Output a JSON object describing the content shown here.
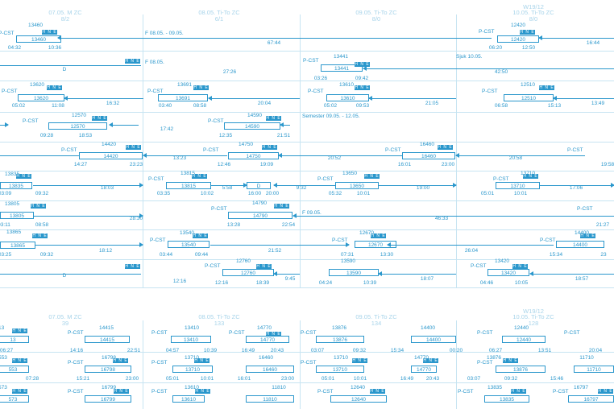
{
  "headers_top": [
    {
      "date": "07.05. M ZC",
      "sub": "8/2"
    },
    {
      "date": "08.05. Ti-To ZC",
      "sub": "6/1"
    },
    {
      "date": "09.05. Ti-To ZC",
      "sub": "8/0"
    },
    {
      "date": "W19/12",
      "date2": "10.05. Ti-To ZC",
      "sub": "8/0"
    }
  ],
  "headers_bottom": [
    {
      "date": "07.05. M ZC",
      "sub": "39"
    },
    {
      "date": "08.05. Ti-To ZC",
      "sub": "133"
    },
    {
      "date": "09.05. Ti-To ZC",
      "sub": "134"
    },
    {
      "date": "W19/12",
      "date2": "10.05. Ti-To ZC",
      "sub": "128"
    }
  ],
  "badge": "H N E",
  "top_rows": [
    {
      "texts": [
        "P-CST",
        "13460",
        "13460",
        "04:32",
        "10:36",
        "F 08.05. - 09.05.",
        "67:44",
        "P-CST",
        "12420",
        "12420",
        "06:20",
        "12:50",
        "16:44"
      ]
    },
    {
      "texts": [
        "D",
        "F 08.05.",
        "27:26",
        "P-CST",
        "13441",
        "13441",
        "03:26",
        "09:42",
        "Sjuk 10.05.",
        "42:50"
      ]
    },
    {
      "texts": [
        "P-CST",
        "13620",
        "13620",
        "05:02",
        "11:08",
        "16:32",
        "P-CST",
        "13691",
        "13691",
        "03:40",
        "08:58",
        "20:04",
        "P-CST",
        "13610",
        "13610",
        "05:02",
        "09:53",
        "21:05",
        "P-CST",
        "12510",
        "12510",
        "06:58",
        "15:13",
        "13:49"
      ]
    },
    {
      "texts": [
        "P-CST",
        "12570",
        "12570",
        "09:28",
        "18:53",
        "17:42",
        "P-CST",
        "14590",
        "14590",
        "12:35",
        "21:51",
        "Semester 09.05. - 12.05."
      ]
    },
    {
      "texts": [
        "P-CST",
        "14420",
        "14420",
        "14:27",
        "23:23",
        "13:23",
        "P-CST",
        "14750",
        "14750",
        "12:46",
        "19:09",
        "20:52",
        "P-CST",
        "16460",
        "16460",
        "16:01",
        "23:00",
        "20:58",
        "P-CST",
        "19:58"
      ]
    },
    {
      "texts": [
        "13835",
        "13835",
        "03:09",
        "09:32",
        "18:03",
        "P-CST",
        "13815",
        "13815",
        "03:35",
        "10:02",
        "5:58",
        "D",
        "16:00",
        "20:00",
        "9:32",
        "P-CST",
        "13650",
        "13650",
        "05:32",
        "10:01",
        "19:00",
        "P-CST",
        "13710",
        "13710",
        "05:01",
        "10:01",
        "17:06"
      ]
    },
    {
      "texts": [
        "13805",
        "13805",
        "03:11",
        "08:58",
        "28:30",
        "P-CST",
        "14790",
        "14790",
        "13:28",
        "22:54",
        "F 09.05.",
        "46:33",
        "P-CST",
        "21:27"
      ]
    },
    {
      "texts": [
        "13865",
        "13865",
        "03:25",
        "09:32",
        "18:12",
        "P-CST",
        "13540",
        "13540",
        "03:44",
        "09:44",
        "21:52",
        "P-CST",
        "12670",
        "12670",
        "07:31",
        "13:30",
        "26:04",
        "P-CST",
        "14400",
        "14400",
        "15:34",
        "23"
      ]
    },
    {
      "texts": [
        "D",
        "12:16",
        "P-CST",
        "12760",
        "12760",
        "12:16",
        "18:39",
        "9:45",
        "13590",
        "13590",
        "04:24",
        "10:39",
        "18:07",
        "P-CST",
        "13420",
        "13420",
        "04:46",
        "10:05",
        "18:57"
      ]
    }
  ],
  "bottom_rows": [
    {
      "texts": [
        "13",
        "13",
        "06:27",
        "P-CST",
        "14415",
        "14415",
        "14:16",
        "22:51",
        "P-CST",
        "13410",
        "13410",
        "04:57",
        "10:39",
        "P-CST",
        "14770",
        "14770",
        "16:49",
        "20:43",
        "P-CST",
        "13876",
        "13876",
        "03:07",
        "09:32",
        "14400",
        "14400",
        "15:34",
        "00:20",
        "P-CST",
        "12440",
        "12440",
        "06:27",
        "13:51",
        "P-CST",
        "20:04"
      ]
    },
    {
      "texts": [
        "553",
        "553",
        "07:28",
        "P-CST",
        "16798",
        "16798",
        "15:21",
        "23:00",
        "P-CST",
        "13710",
        "13710",
        "05:01",
        "10:01",
        "16460",
        "16460",
        "16:01",
        "23:00",
        "P-CST",
        "13710",
        "13710",
        "05:01",
        "10:01",
        "14770",
        "14770",
        "16:49",
        "20:43",
        "P-CST",
        "13876",
        "13876",
        "03:07",
        "09:32",
        "11710",
        "11710",
        "15:46"
      ]
    },
    {
      "texts": [
        "573",
        "573",
        "P-CST",
        "16799",
        "16799",
        "P-CST",
        "13610",
        "13610",
        "11810",
        "11810",
        "P-CST",
        "12640",
        "12640",
        "P-CST",
        "13835",
        "13835",
        "P-CST",
        "16797",
        "16797"
      ]
    }
  ]
}
